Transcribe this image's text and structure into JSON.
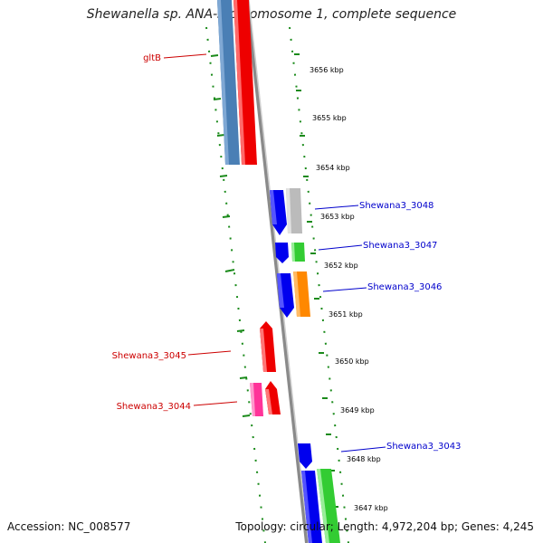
{
  "title": "Shewanella sp. ANA-3 chromosome 1, complete sequence",
  "footer": {
    "accession": "Accession: NC_008577",
    "topology": "Topology: circular; Length: 4,972,204 bp; Genes: 4,245"
  },
  "ticks": [
    "3656 kbp",
    "3655 kbp",
    "3654 kbp",
    "3653 kbp",
    "3652 kbp",
    "3651 kbp",
    "3650 kbp",
    "3649 kbp",
    "3648 kbp",
    "3647 kbp"
  ],
  "gene_labels": [
    {
      "text": "gltB",
      "color": "#cc0000"
    },
    {
      "text": "Shewana3_3048",
      "color": "#0000cc"
    },
    {
      "text": "Shewana3_3047",
      "color": "#0000cc"
    },
    {
      "text": "Shewana3_3046",
      "color": "#0000cc"
    },
    {
      "text": "Shewana3_3045",
      "color": "#cc0000"
    },
    {
      "text": "Shewana3_3044",
      "color": "#cc0000"
    },
    {
      "text": "Shewana3_3043",
      "color": "#0000cc"
    }
  ],
  "colors": {
    "backbone": "#888888",
    "ring_dots": "#1a8a1a",
    "steel_blue": "#4a7fb5",
    "red": "#ee0000",
    "blue": "#0000ee",
    "grey": "#bbbbbb",
    "green": "#33cc33",
    "orange": "#ff8800",
    "pink": "#ff3399"
  }
}
